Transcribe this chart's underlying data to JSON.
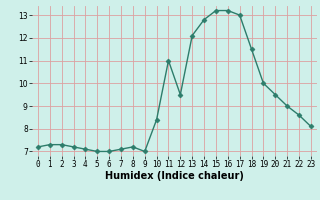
{
  "x": [
    0,
    1,
    2,
    3,
    4,
    5,
    6,
    7,
    8,
    9,
    10,
    11,
    12,
    13,
    14,
    15,
    16,
    17,
    18,
    19,
    20,
    21,
    22,
    23
  ],
  "y": [
    7.2,
    7.3,
    7.3,
    7.2,
    7.1,
    7.0,
    7.0,
    7.1,
    7.2,
    7.0,
    8.4,
    11.0,
    9.5,
    12.1,
    12.8,
    13.2,
    13.2,
    13.0,
    11.5,
    10.0,
    9.5,
    9.0,
    8.6,
    8.1
  ],
  "xlabel": "Humidex (Indice chaleur)",
  "ylim_min": 6.8,
  "ylim_max": 13.4,
  "yticks": [
    7,
    8,
    9,
    10,
    11,
    12,
    13
  ],
  "line_color": "#2d7d6b",
  "marker": "D",
  "marker_size": 2.5,
  "bg_color": "#cff0ea",
  "grid_color": "#dda0a0",
  "xlabel_fontsize": 7,
  "tick_fontsize": 5.5
}
